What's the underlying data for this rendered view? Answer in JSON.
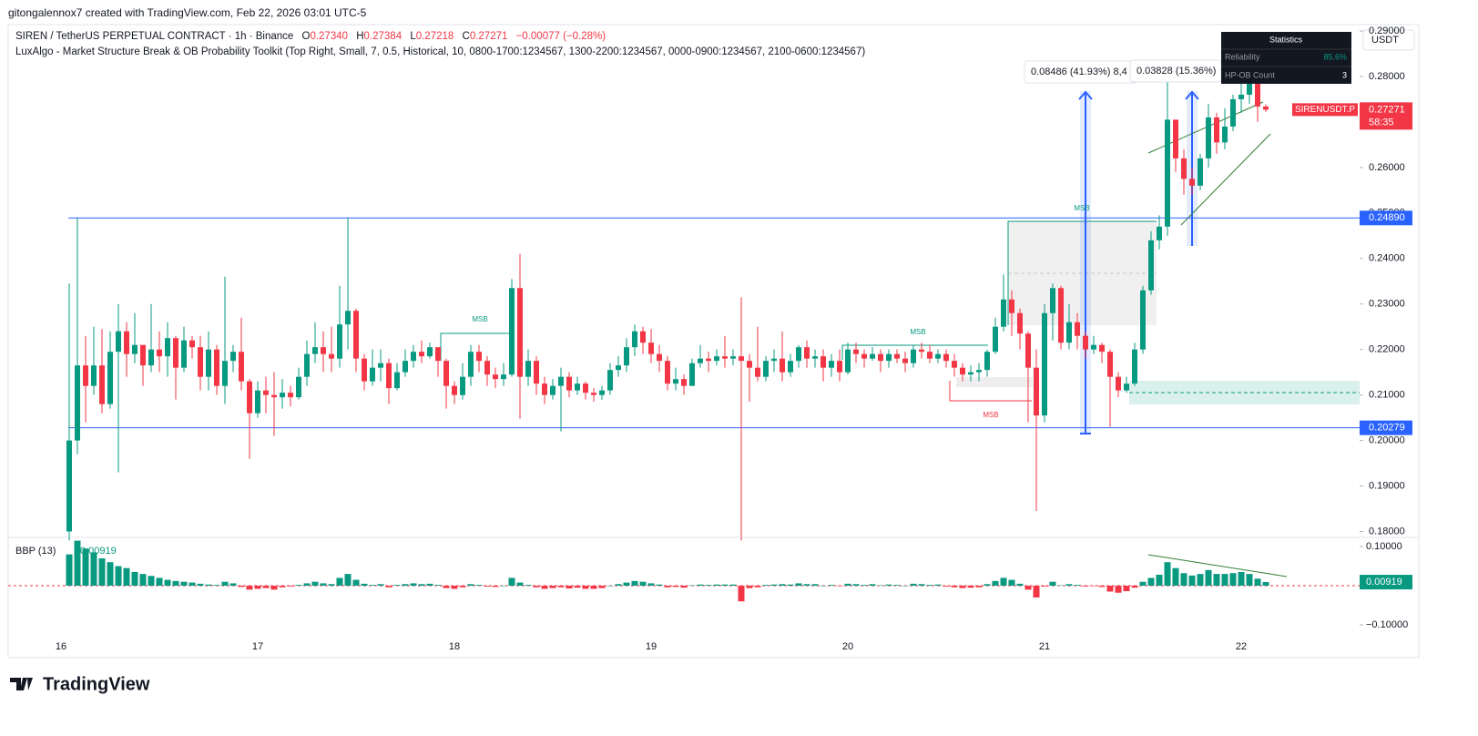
{
  "header": {
    "text": "gitongalennox7 created with TradingView.com, Feb 22, 2026 03:01 UTC-5"
  },
  "legend": {
    "symbol": "SIREN / TetherUS PERPETUAL CONTRACT · 1h · Binance",
    "ohlc": [
      {
        "label": "O",
        "value": "0.27340"
      },
      {
        "label": "H",
        "value": "0.27384"
      },
      {
        "label": "L",
        "value": "0.27218"
      },
      {
        "label": "C",
        "value": "0.27271"
      }
    ],
    "change": "−0.00077 (−0.28%)",
    "indicator": "LuxAlgo - Market Structure Break & OB Probability Toolkit (Top Right, Small, 7, 0.5, Historical, 10, 0800-1700:1234567, 1300-2200:1234567, 0000-0900:1234567, 2100-0600:1234567)"
  },
  "currency": "USDT",
  "statistics": {
    "title": "Statistics",
    "rows": [
      [
        "Reliability",
        "85.6%"
      ],
      [
        "HP-OB Count",
        "3"
      ]
    ]
  },
  "measures": [
    "0.08486 (41.93%) 8,4",
    "0.03828 (15.36%)"
  ],
  "msb_labels": [
    "MSB",
    "MSB",
    "MSB",
    "MSB"
  ],
  "logo": "TradingView",
  "chart_data": [
    {
      "type": "candlestick",
      "categories": [
        "16",
        null,
        null,
        null,
        null,
        null,
        null,
        null,
        null,
        null,
        null,
        null,
        null,
        null,
        null,
        null,
        null,
        null,
        null,
        null,
        null,
        null,
        null,
        null,
        "17",
        null,
        null,
        null,
        null,
        null,
        null,
        null,
        null,
        null,
        null,
        null,
        null,
        null,
        null,
        null,
        null,
        null,
        null,
        null,
        null,
        null,
        null,
        null,
        "18",
        null,
        null,
        null,
        null,
        null,
        null,
        null,
        null,
        null,
        null,
        null,
        null,
        null,
        null,
        null,
        null,
        null,
        null,
        null,
        null,
        null,
        null,
        null,
        "19",
        null,
        null,
        null,
        null,
        null,
        null,
        null,
        null,
        null,
        null,
        null,
        null,
        null,
        null,
        null,
        null,
        null,
        null,
        null,
        null,
        null,
        null,
        null,
        "20",
        null,
        null,
        null,
        null,
        null,
        null,
        null,
        null,
        null,
        null,
        null,
        null,
        null,
        null,
        null,
        null,
        null,
        null,
        null,
        null,
        null,
        null,
        null,
        "21",
        null,
        null,
        null,
        null,
        null,
        null,
        null,
        null,
        null,
        null,
        null,
        null,
        null,
        null,
        null,
        null,
        null,
        null,
        null,
        null,
        null,
        null,
        null,
        "22",
        null,
        null,
        null
      ],
      "open": [
        null,
        0.18,
        0.2,
        0.2165,
        0.212,
        0.2165,
        0.208,
        0.2195,
        0.224,
        0.219,
        0.221,
        0.2165,
        0.22,
        0.2185,
        0.2225,
        0.216,
        0.222,
        0.2205,
        0.214,
        0.22,
        0.212,
        0.2175,
        0.2195,
        0.213,
        0.206,
        0.211,
        0.21,
        0.2095,
        0.2105,
        0.2095,
        0.214,
        0.219,
        0.2205,
        0.219,
        0.218,
        0.2255,
        0.2285,
        0.218,
        0.213,
        0.216,
        0.217,
        0.2115,
        0.215,
        0.2175,
        0.2195,
        0.2185,
        0.2205,
        0.2175,
        0.212,
        0.21,
        0.214,
        0.2195,
        0.2175,
        0.2145,
        0.2135,
        0.2145,
        0.2335,
        0.214,
        0.2175,
        0.2125,
        0.21,
        0.212,
        0.214,
        0.211,
        0.2125,
        0.2105,
        0.21,
        0.211,
        0.2155,
        0.2165,
        0.2205,
        0.224,
        0.2215,
        0.219,
        0.2175,
        0.2125,
        0.2135,
        0.212,
        0.217,
        0.218,
        0.2175,
        0.2185,
        0.218,
        0.2185,
        0.2175,
        0.216,
        0.214,
        0.2175,
        0.218,
        0.215,
        0.2175,
        0.2205,
        0.218,
        0.2185,
        0.216,
        0.2175,
        0.215,
        0.22,
        0.219,
        0.218,
        0.219,
        0.2175,
        0.219,
        0.218,
        0.217,
        0.22,
        0.2195,
        0.218,
        0.219,
        0.2175,
        0.216,
        0.2145,
        0.215,
        0.2155,
        0.2195,
        0.225,
        0.231,
        0.228,
        0.2235,
        0.216,
        0.2055,
        0.228,
        0.2335,
        0.2215,
        0.226,
        0.223,
        0.22,
        0.221,
        0.2195,
        0.214,
        0.211,
        0.2125,
        0.22,
        0.233,
        0.244,
        0.247,
        0.2705,
        0.262,
        0.2575,
        0.256,
        0.262,
        0.271,
        0.2655,
        0.269,
        0.275,
        0.276,
        0.281,
        0.2734
      ],
      "high": [
        null,
        0.2345,
        0.249,
        0.223,
        0.225,
        0.2245,
        0.224,
        0.23,
        0.226,
        0.228,
        0.221,
        0.23,
        0.224,
        0.226,
        0.223,
        0.225,
        0.223,
        0.223,
        0.224,
        0.221,
        0.236,
        0.221,
        0.227,
        0.2135,
        0.213,
        0.214,
        0.215,
        0.2135,
        0.212,
        0.216,
        0.222,
        0.226,
        0.224,
        0.225,
        0.234,
        0.249,
        0.229,
        0.219,
        0.22,
        0.22,
        0.218,
        0.217,
        0.22,
        0.221,
        0.222,
        0.2215,
        0.2205,
        0.218,
        0.213,
        0.217,
        0.221,
        0.221,
        0.2185,
        0.216,
        0.217,
        0.2355,
        0.241,
        0.22,
        0.2185,
        0.214,
        0.2135,
        0.216,
        0.215,
        0.214,
        0.213,
        0.2115,
        0.212,
        0.217,
        0.2185,
        0.2225,
        0.2255,
        0.225,
        0.2245,
        0.221,
        0.2185,
        0.216,
        0.2145,
        0.218,
        0.221,
        0.2195,
        0.22,
        0.223,
        0.22,
        0.2315,
        0.219,
        0.225,
        0.2185,
        0.22,
        0.224,
        0.219,
        0.221,
        0.222,
        0.22,
        0.22,
        0.219,
        0.22,
        0.2215,
        0.2215,
        0.22,
        0.2205,
        0.22,
        0.22,
        0.22,
        0.2195,
        0.221,
        0.2215,
        0.221,
        0.22,
        0.22,
        0.219,
        0.217,
        0.2165,
        0.217,
        0.22,
        0.227,
        0.2365,
        0.233,
        0.229,
        0.224,
        0.22,
        0.23,
        0.2345,
        0.234,
        0.23,
        0.228,
        0.224,
        0.223,
        0.2215,
        0.22,
        0.215,
        0.214,
        0.2215,
        0.234,
        0.246,
        0.2495,
        0.279,
        0.2705,
        0.264,
        0.26,
        0.263,
        0.274,
        0.272,
        0.273,
        0.276,
        0.287,
        0.283,
        0.2865,
        0.27384
      ],
      "low": [
        null,
        0.178,
        0.197,
        0.204,
        0.21,
        0.206,
        0.207,
        0.193,
        0.214,
        0.217,
        0.212,
        0.215,
        0.215,
        0.214,
        0.209,
        0.215,
        0.218,
        0.211,
        0.211,
        0.21,
        0.208,
        0.215,
        0.211,
        0.196,
        0.205,
        0.206,
        0.201,
        0.207,
        0.2075,
        0.209,
        0.212,
        0.217,
        0.215,
        0.215,
        0.216,
        0.22,
        0.215,
        0.211,
        0.212,
        0.213,
        0.208,
        0.211,
        0.214,
        0.216,
        0.217,
        0.218,
        0.214,
        0.207,
        0.208,
        0.209,
        0.212,
        0.215,
        0.212,
        0.2115,
        0.212,
        0.214,
        0.2048,
        0.212,
        0.21,
        0.208,
        0.209,
        0.202,
        0.2095,
        0.21,
        0.209,
        0.2085,
        0.209,
        0.21,
        0.214,
        0.215,
        0.2185,
        0.219,
        0.217,
        0.215,
        0.211,
        0.211,
        0.21,
        0.212,
        0.216,
        0.215,
        0.2165,
        0.216,
        0.2165,
        0.178,
        0.2085,
        0.213,
        0.213,
        0.215,
        0.213,
        0.214,
        0.216,
        0.216,
        0.216,
        0.213,
        0.214,
        0.213,
        0.2145,
        0.217,
        0.216,
        0.2175,
        0.215,
        0.216,
        0.217,
        0.215,
        0.216,
        0.218,
        0.217,
        0.217,
        0.216,
        0.214,
        0.213,
        0.213,
        0.213,
        0.214,
        0.219,
        0.224,
        0.223,
        0.22,
        0.204,
        0.1845,
        0.204,
        0.222,
        0.22,
        0.22,
        0.22,
        0.218,
        0.219,
        0.217,
        0.203,
        0.2095,
        0.2105,
        0.212,
        0.219,
        0.232,
        0.242,
        0.245,
        0.259,
        0.254,
        0.254,
        0.255,
        0.26,
        0.263,
        0.264,
        0.268,
        0.272,
        0.274,
        0.27,
        0.27218
      ],
      "close": [
        null,
        0.2,
        0.2165,
        0.212,
        0.2165,
        0.208,
        0.2195,
        0.224,
        0.219,
        0.221,
        0.2165,
        0.22,
        0.2185,
        0.2225,
        0.216,
        0.222,
        0.2205,
        0.214,
        0.22,
        0.212,
        0.2175,
        0.2195,
        0.213,
        0.206,
        0.211,
        0.21,
        0.2095,
        0.2105,
        0.2095,
        0.214,
        0.219,
        0.2205,
        0.219,
        0.218,
        0.2255,
        0.2285,
        0.218,
        0.213,
        0.216,
        0.217,
        0.2115,
        0.215,
        0.2175,
        0.2195,
        0.2185,
        0.2205,
        0.2175,
        0.212,
        0.21,
        0.214,
        0.2195,
        0.2175,
        0.2145,
        0.2135,
        0.2145,
        0.2335,
        0.214,
        0.2175,
        0.2125,
        0.21,
        0.212,
        0.214,
        0.211,
        0.2125,
        0.2105,
        0.21,
        0.211,
        0.2155,
        0.2165,
        0.2205,
        0.224,
        0.2215,
        0.219,
        0.2175,
        0.2125,
        0.2135,
        0.212,
        0.217,
        0.218,
        0.2175,
        0.2185,
        0.218,
        0.2185,
        0.2175,
        0.216,
        0.214,
        0.2175,
        0.218,
        0.215,
        0.2175,
        0.2205,
        0.218,
        0.2185,
        0.216,
        0.2175,
        0.215,
        0.22,
        0.219,
        0.218,
        0.219,
        0.2175,
        0.219,
        0.218,
        0.217,
        0.22,
        0.2195,
        0.218,
        0.219,
        0.2175,
        0.216,
        0.2145,
        0.215,
        0.2155,
        0.2195,
        0.225,
        0.231,
        0.228,
        0.2235,
        0.216,
        0.2055,
        0.228,
        0.2335,
        0.2215,
        0.226,
        0.223,
        0.22,
        0.221,
        0.2195,
        0.214,
        0.211,
        0.2125,
        0.22,
        0.233,
        0.244,
        0.247,
        0.2705,
        0.262,
        0.2575,
        0.256,
        0.262,
        0.271,
        0.2655,
        0.269,
        0.275,
        0.276,
        0.281,
        0.2734,
        0.27271
      ],
      "up_color": "#089981",
      "down_color": "#f23645",
      "ylim": [
        0.1787,
        0.2914
      ],
      "yticks": [
        {
          "value": 0.18,
          "label": "0.18000"
        },
        {
          "value": 0.19,
          "label": "0.19000"
        },
        {
          "value": 0.2,
          "label": "0.20000"
        },
        {
          "value": 0.21,
          "label": "0.21000"
        },
        {
          "value": 0.22,
          "label": "0.22000"
        },
        {
          "value": 0.23,
          "label": "0.23000"
        },
        {
          "value": 0.24,
          "label": "0.24000"
        },
        {
          "value": 0.25,
          "label": "0.25000"
        },
        {
          "value": 0.26,
          "label": "0.26000"
        },
        {
          "value": 0.27,
          "label": "0.27000"
        },
        {
          "value": 0.28,
          "label": "0.28000"
        },
        {
          "value": 0.29,
          "label": "0.29000"
        }
      ],
      "levels": [
        {
          "value": 0.2489,
          "label": "0.24890",
          "color": "#2962ff"
        },
        {
          "value": 0.20279,
          "label": "0.20279",
          "color": "#2962ff"
        }
      ],
      "last_price_label": "0.27271",
      "countdown": "58:35",
      "symbol_label": "SIRENUSDT.P"
    },
    {
      "type": "bar",
      "title": "BBP (13)",
      "value_label": "0.00919",
      "values": [
        null,
        0.08,
        0.115,
        0.095,
        0.085,
        0.07,
        0.06,
        0.05,
        0.045,
        0.035,
        0.03,
        0.025,
        0.02,
        0.015,
        0.012,
        0.01,
        0.008,
        0.005,
        0.003,
        0.002,
        0.01,
        0.006,
        -0.003,
        -0.01,
        -0.008,
        -0.006,
        -0.01,
        -0.004,
        -0.002,
        0.002,
        0.006,
        0.01,
        0.006,
        0.004,
        0.02,
        0.03,
        0.015,
        0.005,
        0.002,
        0.004,
        -0.004,
        0.002,
        0.004,
        0.006,
        0.004,
        0.005,
        0.002,
        -0.006,
        -0.008,
        -0.004,
        0.004,
        0.002,
        -0.002,
        -0.003,
        0.0,
        0.02,
        0.008,
        0.002,
        -0.004,
        -0.008,
        -0.006,
        -0.004,
        -0.007,
        -0.005,
        -0.008,
        -0.008,
        -0.006,
        0.0,
        0.004,
        0.008,
        0.012,
        0.01,
        0.006,
        0.003,
        -0.004,
        -0.003,
        -0.005,
        0.001,
        0.003,
        0.002,
        0.003,
        0.003,
        0.003,
        -0.04,
        -0.006,
        -0.004,
        0.002,
        0.003,
        0.004,
        0.003,
        0.006,
        0.004,
        0.004,
        0.0,
        0.002,
        -0.001,
        0.005,
        0.004,
        0.002,
        0.004,
        0.001,
        0.003,
        0.002,
        0.0,
        0.005,
        0.004,
        0.002,
        0.003,
        -0.002,
        -0.004,
        -0.006,
        -0.005,
        -0.004,
        0.004,
        0.012,
        0.02,
        0.015,
        0.005,
        -0.01,
        -0.03,
        -0.002,
        0.01,
        0.001,
        0.004,
        0.002,
        -0.002,
        -0.001,
        -0.003,
        -0.015,
        -0.018,
        -0.014,
        -0.005,
        0.01,
        0.02,
        0.028,
        0.06,
        0.045,
        0.032,
        0.026,
        0.03,
        0.04,
        0.03,
        0.03,
        0.032,
        0.035,
        0.03,
        0.018,
        0.00919
      ],
      "up_color": "#089981",
      "down_color": "#f23645",
      "ylim": [
        -0.1279,
        0.1233
      ],
      "yticks": [
        {
          "value": 0.1,
          "label": "0.10000"
        },
        {
          "value": -0.1,
          "label": "−0.10000"
        }
      ]
    }
  ]
}
